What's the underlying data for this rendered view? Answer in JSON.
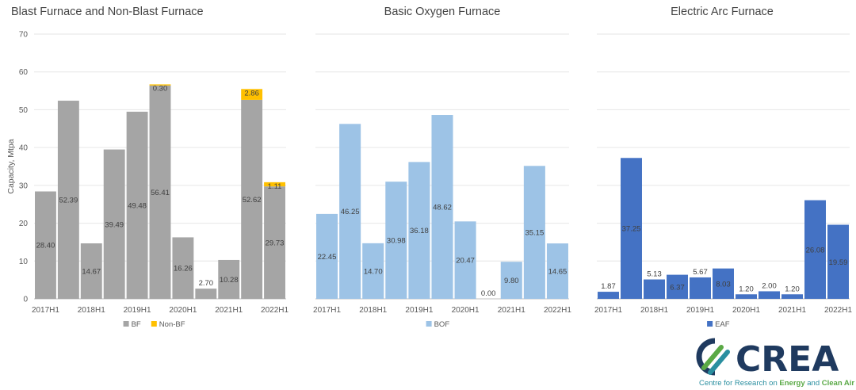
{
  "chart_data": [
    {
      "type": "bar",
      "stacked": true,
      "title": "Blast Furnace and Non-Blast Furnace",
      "ylabel": "Capacity, Mtpa",
      "ylim": [
        0,
        70
      ],
      "yticks": [
        "0",
        "10",
        "20",
        "30",
        "40",
        "50",
        "60",
        "70"
      ],
      "categories": [
        "2017H1",
        "2017H2",
        "2018H1",
        "2018H2",
        "2019H1",
        "2019H2",
        "2020H1",
        "2020H2",
        "2021H1",
        "2021H2",
        "2022H1"
      ],
      "xtick_labels": [
        "2017H1",
        "",
        "2018H1",
        "",
        "2019H1",
        "",
        "2020H1",
        "",
        "2021H1",
        "",
        "2022H1"
      ],
      "grid": true,
      "legend_position": "bottom",
      "series": [
        {
          "name": "BF",
          "color": "#a5a5a5",
          "values": [
            28.4,
            52.39,
            14.67,
            39.49,
            49.48,
            56.41,
            16.26,
            2.7,
            10.28,
            52.62,
            29.73
          ],
          "labels": [
            "28.40",
            "52.39",
            "14.67",
            "39.49",
            "49.48",
            "56.41",
            "16.26",
            "2.70",
            "10.28",
            "52.62",
            "29.73"
          ]
        },
        {
          "name": "Non-BF",
          "color": "#ffc000",
          "values": [
            0,
            0,
            0,
            0,
            0,
            0.3,
            0,
            0,
            0,
            2.86,
            1.11
          ],
          "labels": [
            "",
            "",
            "",
            "",
            "",
            "0.30",
            "",
            "",
            "",
            "2.86",
            "1.11"
          ]
        }
      ]
    },
    {
      "type": "bar",
      "title": "Basic Oxygen Furnace",
      "ylim": [
        0,
        70
      ],
      "categories": [
        "2017H1",
        "2017H2",
        "2018H1",
        "2018H2",
        "2019H1",
        "2019H2",
        "2020H1",
        "2020H2",
        "2021H1",
        "2021H2",
        "2022H1"
      ],
      "xtick_labels": [
        "2017H1",
        "",
        "2018H1",
        "",
        "2019H1",
        "",
        "2020H1",
        "",
        "2021H1",
        "",
        "2022H1"
      ],
      "grid": true,
      "legend_position": "bottom",
      "series": [
        {
          "name": "BOF",
          "color": "#9dc3e6",
          "values": [
            22.45,
            46.25,
            14.7,
            30.98,
            36.18,
            48.62,
            20.47,
            0.0,
            9.8,
            35.15,
            14.65
          ],
          "labels": [
            "22.45",
            "46.25",
            "14.70",
            "30.98",
            "36.18",
            "48.62",
            "20.47",
            "0.00",
            "9.80",
            "35.15",
            "14.65"
          ]
        }
      ]
    },
    {
      "type": "bar",
      "title": "Electric Arc Furnace",
      "ylim": [
        0,
        70
      ],
      "categories": [
        "2017H1",
        "2017H2",
        "2018H1",
        "2018H2",
        "2019H1",
        "2019H2",
        "2020H1",
        "2020H2",
        "2021H1",
        "2021H2",
        "2022H1"
      ],
      "xtick_labels": [
        "2017H1",
        "",
        "2018H1",
        "",
        "2019H1",
        "",
        "2020H1",
        "",
        "2021H1",
        "",
        "2022H1"
      ],
      "grid": true,
      "legend_position": "bottom",
      "series": [
        {
          "name": "EAF",
          "color": "#4472c4",
          "values": [
            1.87,
            37.25,
            5.13,
            6.37,
            5.67,
            8.03,
            1.2,
            2.0,
            1.2,
            26.08,
            19.59
          ],
          "labels": [
            "1.87",
            "37.25",
            "5.13",
            "6.37",
            "5.67",
            "8.03",
            "1.20",
            "2.00",
            "1.20",
            "26.08",
            "19.59"
          ]
        }
      ]
    }
  ],
  "logo": {
    "text": "CREA",
    "tagline_part1": "Centre for Research on ",
    "tagline_bold1": "Energy",
    "tagline_part2": " and ",
    "tagline_bold2": "Clean Air",
    "color_navy": "#1f3a5f",
    "color_green": "#5aa946",
    "color_teal": "#2a8fa0"
  }
}
